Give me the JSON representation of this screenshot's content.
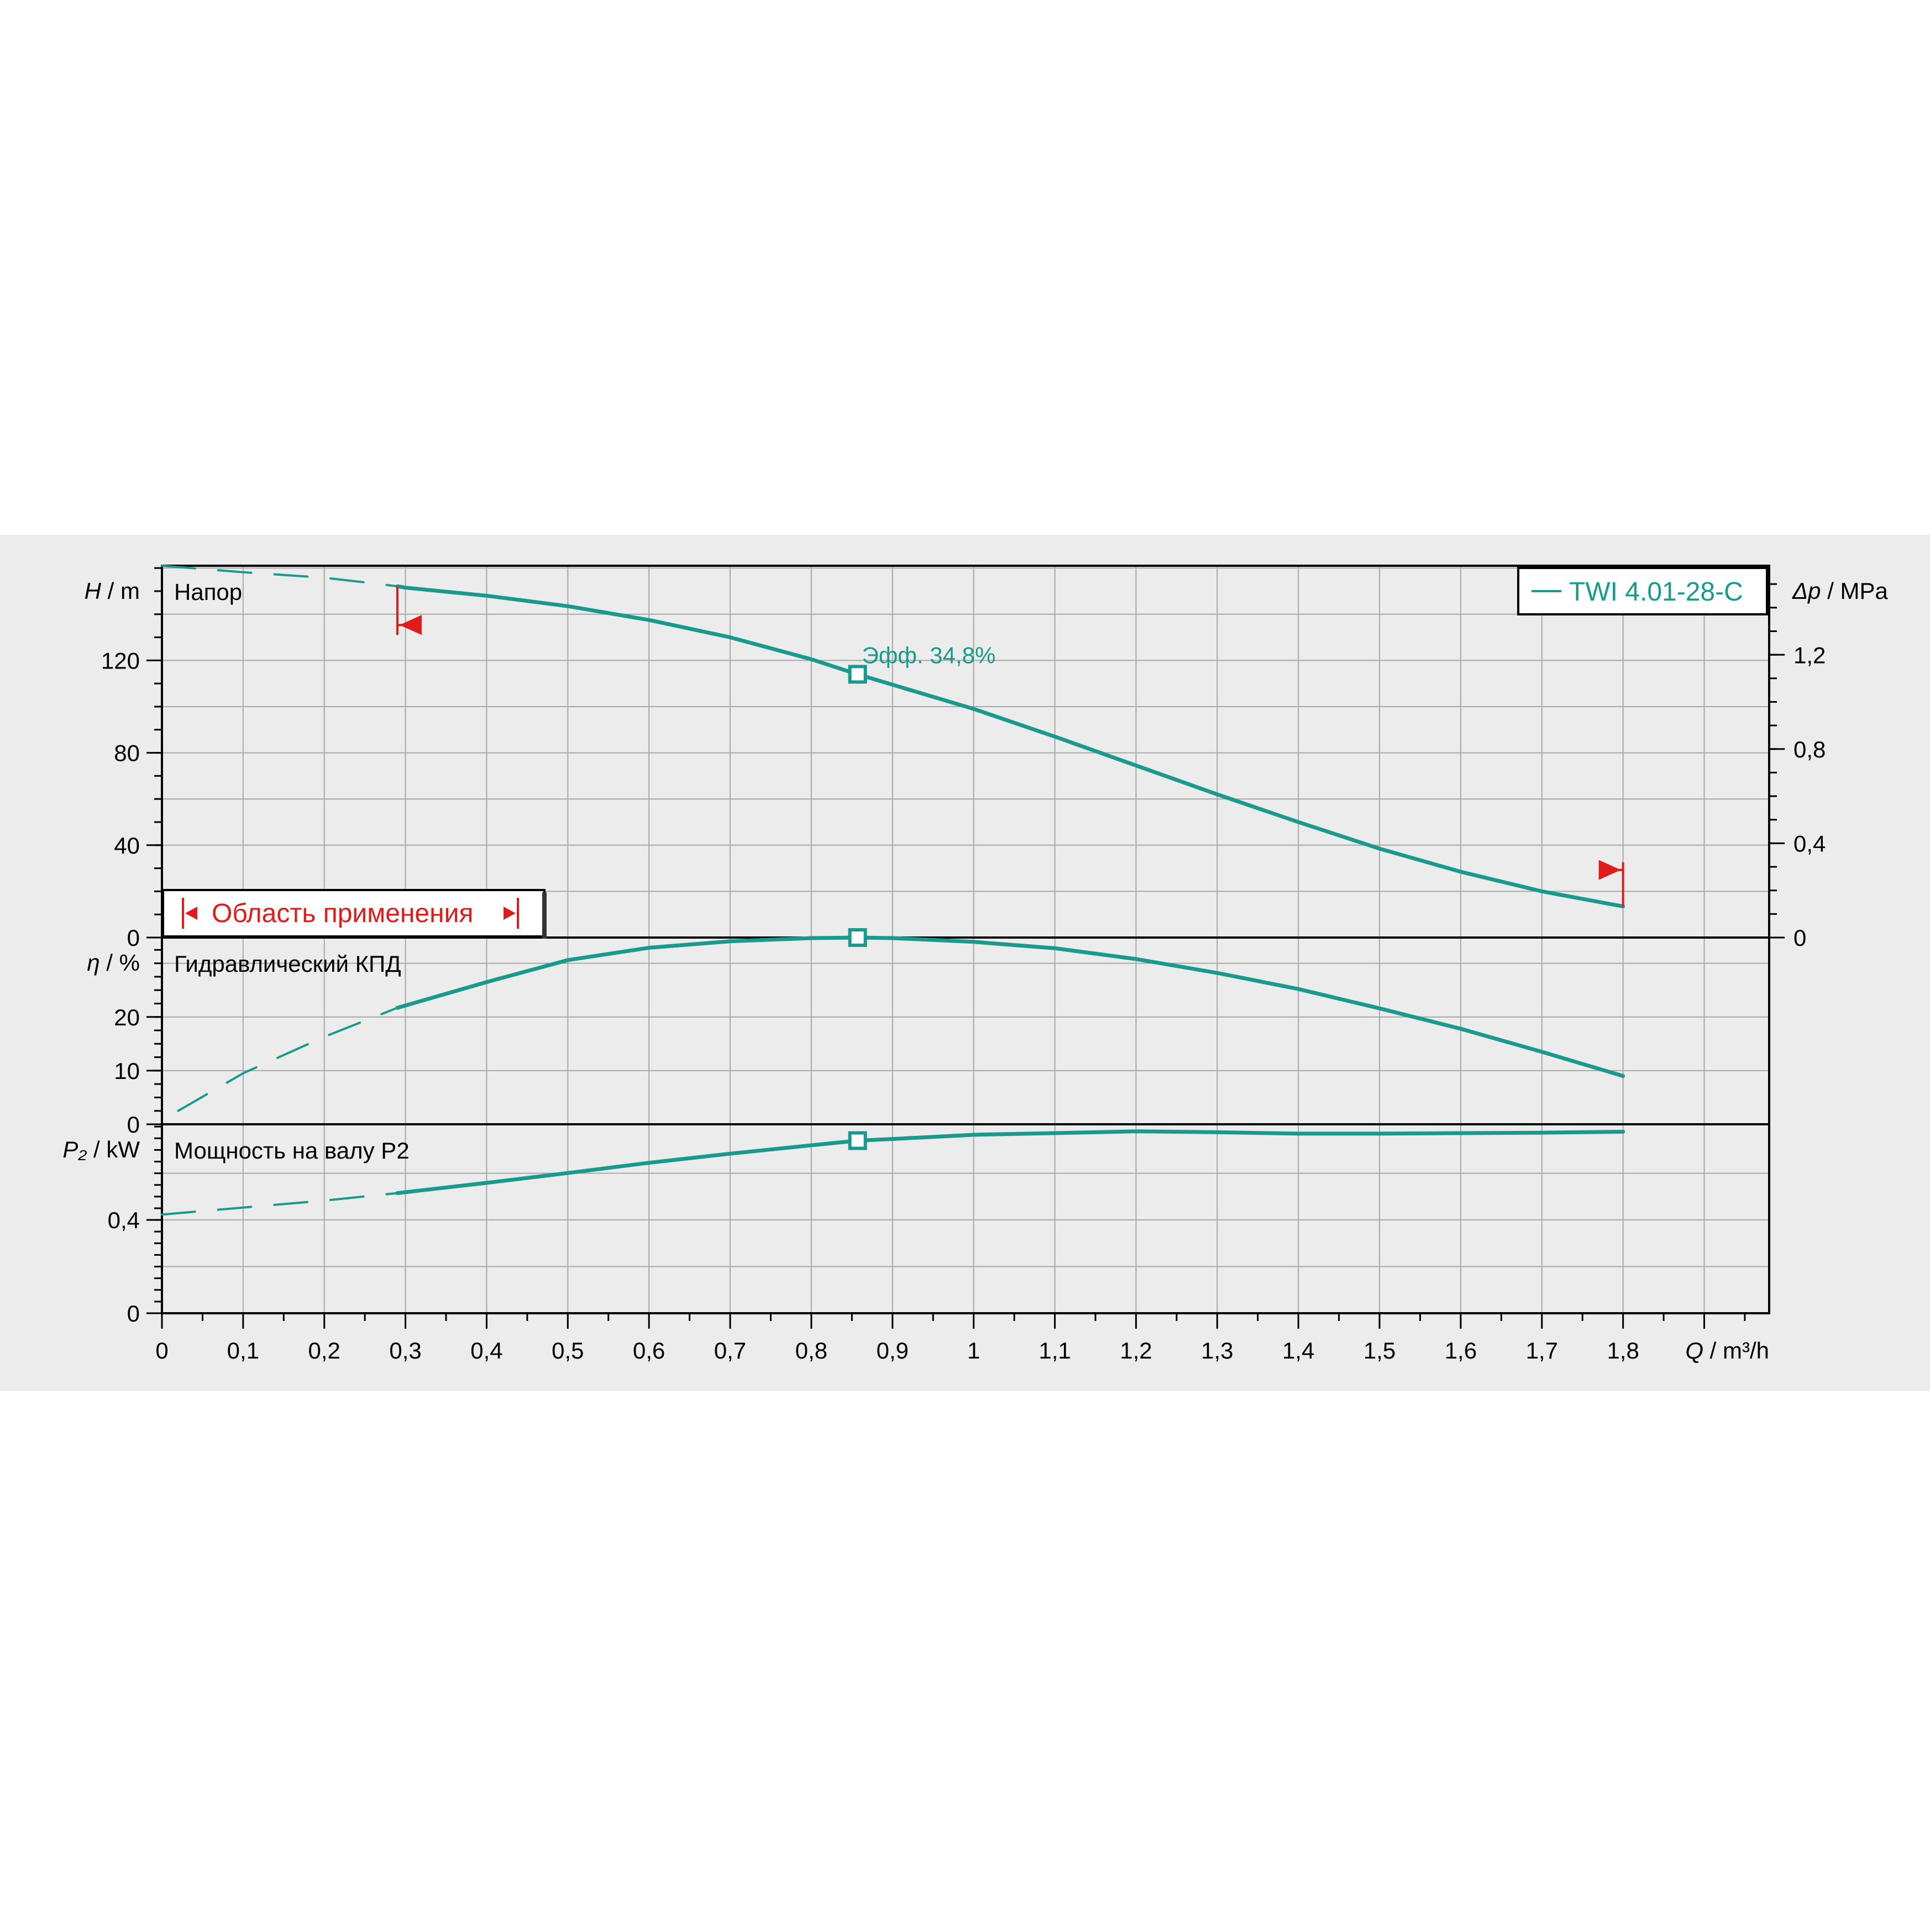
{
  "colors": {
    "page_bg": "#ffffff",
    "band_bg": "#ececec",
    "plot_bg": "#ececec",
    "grid": "#a8a8a8",
    "axis": "#000000",
    "curve": "#1a9a8c",
    "marker": "#1a9a8c",
    "range": "#e11b1b"
  },
  "chart_data": {
    "type": "line",
    "x_axis": {
      "label_var": "Q",
      "label_unit": " / m³/h",
      "range": [
        0,
        1.98
      ],
      "ticks": [
        0,
        0.1,
        0.2,
        0.3,
        0.4,
        0.5,
        0.6,
        0.7,
        0.8,
        0.9,
        1,
        1.1,
        1.2,
        1.3,
        1.4,
        1.5,
        1.6,
        1.7,
        1.8
      ],
      "tick_labels": [
        "0",
        "0,1",
        "0,2",
        "0,3",
        "0,4",
        "0,5",
        "0,6",
        "0,7",
        "0,8",
        "0,9",
        "1",
        "1,1",
        "1,2",
        "1,3",
        "1,4",
        "1,5",
        "1,6",
        "1,7",
        "1,8"
      ]
    },
    "legend": {
      "entry": "TWI 4.01-28-C",
      "placement": "top-right"
    },
    "application_range": {
      "label": "Область применения",
      "q_min": 0.29,
      "q_max": 1.8
    },
    "duty_point": {
      "q": 0.857,
      "label": "Эфф.  34,8%"
    },
    "panels": [
      {
        "id": "head",
        "title": "Напор",
        "y_var": "H",
        "y_unit": " / m",
        "y_range": [
          0,
          161
        ],
        "y_ticks": [
          0,
          40,
          80,
          120
        ],
        "y_tick_labels": [
          "0",
          "40",
          "80",
          "120"
        ],
        "right_axis": {
          "var": "Δp",
          "unit": " / MPa",
          "ticks": [
            0,
            0.4,
            0.8,
            1.2
          ],
          "tick_labels": [
            "0",
            "0,4",
            "0,8",
            "1,2"
          ],
          "factor_per_m": 0.0098
        },
        "series": {
          "dashed": [
            [
              0,
              161
            ],
            [
              0.05,
              159.6
            ],
            [
              0.1,
              158.2
            ],
            [
              0.15,
              157.0
            ],
            [
              0.2,
              155.8
            ],
            [
              0.25,
              153.8
            ],
            [
              0.29,
              152.1
            ]
          ],
          "solid": [
            [
              0.29,
              152.1
            ],
            [
              0.3,
              151.5
            ],
            [
              0.4,
              148
            ],
            [
              0.5,
              143.5
            ],
            [
              0.6,
              137.5
            ],
            [
              0.7,
              130
            ],
            [
              0.8,
              120.5
            ],
            [
              0.857,
              114
            ],
            [
              0.9,
              109.5
            ],
            [
              1.0,
              99
            ],
            [
              1.1,
              87
            ],
            [
              1.2,
              74.5
            ],
            [
              1.3,
              62
            ],
            [
              1.4,
              50
            ],
            [
              1.5,
              38.5
            ],
            [
              1.6,
              28.5
            ],
            [
              1.7,
              20
            ],
            [
              1.8,
              13.5
            ]
          ]
        }
      },
      {
        "id": "efficiency",
        "title": "Гидравлический КПД",
        "y_var": "η",
        "y_unit": " / %",
        "y_range": [
          0,
          34.8
        ],
        "y_ticks": [
          0,
          10,
          20
        ],
        "y_tick_labels": [
          "0",
          "10",
          "20"
        ],
        "series": {
          "dashed": [
            [
              0.02,
              2.5
            ],
            [
              0.1,
              9.5
            ],
            [
              0.2,
              16.3
            ],
            [
              0.29,
              21.7
            ]
          ],
          "solid": [
            [
              0.29,
              21.7
            ],
            [
              0.4,
              26.5
            ],
            [
              0.5,
              30.6
            ],
            [
              0.6,
              32.9
            ],
            [
              0.7,
              34.1
            ],
            [
              0.8,
              34.7
            ],
            [
              0.857,
              34.8
            ],
            [
              0.9,
              34.7
            ],
            [
              1.0,
              34.0
            ],
            [
              1.1,
              32.8
            ],
            [
              1.2,
              30.8
            ],
            [
              1.3,
              28.2
            ],
            [
              1.4,
              25.2
            ],
            [
              1.5,
              21.6
            ],
            [
              1.6,
              17.8
            ],
            [
              1.7,
              13.5
            ],
            [
              1.8,
              9.0
            ]
          ]
        }
      },
      {
        "id": "power",
        "title": "Мощность на валу P2",
        "y_var": "P₂",
        "y_unit": " / kW",
        "y_range": [
          0,
          0.81
        ],
        "y_ticks": [
          0,
          0.4
        ],
        "y_tick_labels": [
          "0",
          "0,4"
        ],
        "series": {
          "dashed": [
            [
              0,
              0.423
            ],
            [
              0.1,
              0.453
            ],
            [
              0.2,
              0.483
            ],
            [
              0.29,
              0.515
            ]
          ],
          "solid": [
            [
              0.29,
              0.515
            ],
            [
              0.4,
              0.559
            ],
            [
              0.5,
              0.601
            ],
            [
              0.6,
              0.645
            ],
            [
              0.7,
              0.684
            ],
            [
              0.8,
              0.72
            ],
            [
              0.857,
              0.74
            ],
            [
              0.9,
              0.747
            ],
            [
              1.0,
              0.765
            ],
            [
              1.1,
              0.772
            ],
            [
              1.2,
              0.78
            ],
            [
              1.3,
              0.776
            ],
            [
              1.4,
              0.77
            ],
            [
              1.5,
              0.77
            ],
            [
              1.6,
              0.772
            ],
            [
              1.7,
              0.774
            ],
            [
              1.8,
              0.778
            ]
          ]
        }
      }
    ]
  }
}
